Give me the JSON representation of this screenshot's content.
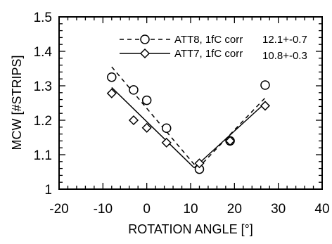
{
  "chart_data": {
    "type": "scatter",
    "xlabel": "ROTATION ANGLE [°]",
    "ylabel": "MCW  [#STRIPS]",
    "xlim": [
      -20,
      40
    ],
    "ylim": [
      1,
      1.5
    ],
    "x_ticks": [
      -20,
      -10,
      0,
      10,
      20,
      30,
      40
    ],
    "x_tick_labels": [
      "-20",
      "-10",
      "0",
      "10",
      "20",
      "30",
      "40"
    ],
    "y_ticks": [
      1,
      1.1,
      1.2,
      1.3,
      1.4,
      1.5
    ],
    "y_tick_labels": [
      "1",
      "1.1",
      "1.2",
      "1.3",
      "1.4",
      "1.5"
    ],
    "grid": false,
    "legend_position": "top-right",
    "series": [
      {
        "name": "ATT8, 1fC corr",
        "annotation": "12.1+-0.7",
        "marker": "circle",
        "line_style": "dashed",
        "x": [
          -8,
          -3,
          0,
          4.5,
          12,
          19,
          27
        ],
        "y": [
          1.325,
          1.288,
          1.258,
          1.177,
          1.058,
          1.14,
          1.302
        ],
        "fit": {
          "left": [
            [
              -8,
              1.355
            ],
            [
              11.6,
              1.06
            ]
          ],
          "right": [
            [
              11.6,
              1.06
            ],
            [
              27,
              1.265
            ]
          ]
        }
      },
      {
        "name": "ATT7, 1fC corr",
        "annotation": "10.8+-0.3",
        "marker": "diamond",
        "line_style": "solid",
        "x": [
          -8,
          -3,
          0,
          4.5,
          12,
          19,
          27
        ],
        "y": [
          1.278,
          1.2,
          1.178,
          1.135,
          1.075,
          1.14,
          1.242
        ],
        "fit": {
          "left": [
            [
              -8,
              1.295
            ],
            [
              10.8,
              1.062
            ]
          ],
          "right": [
            [
              10.8,
              1.062
            ],
            [
              27,
              1.25
            ]
          ]
        }
      }
    ]
  }
}
